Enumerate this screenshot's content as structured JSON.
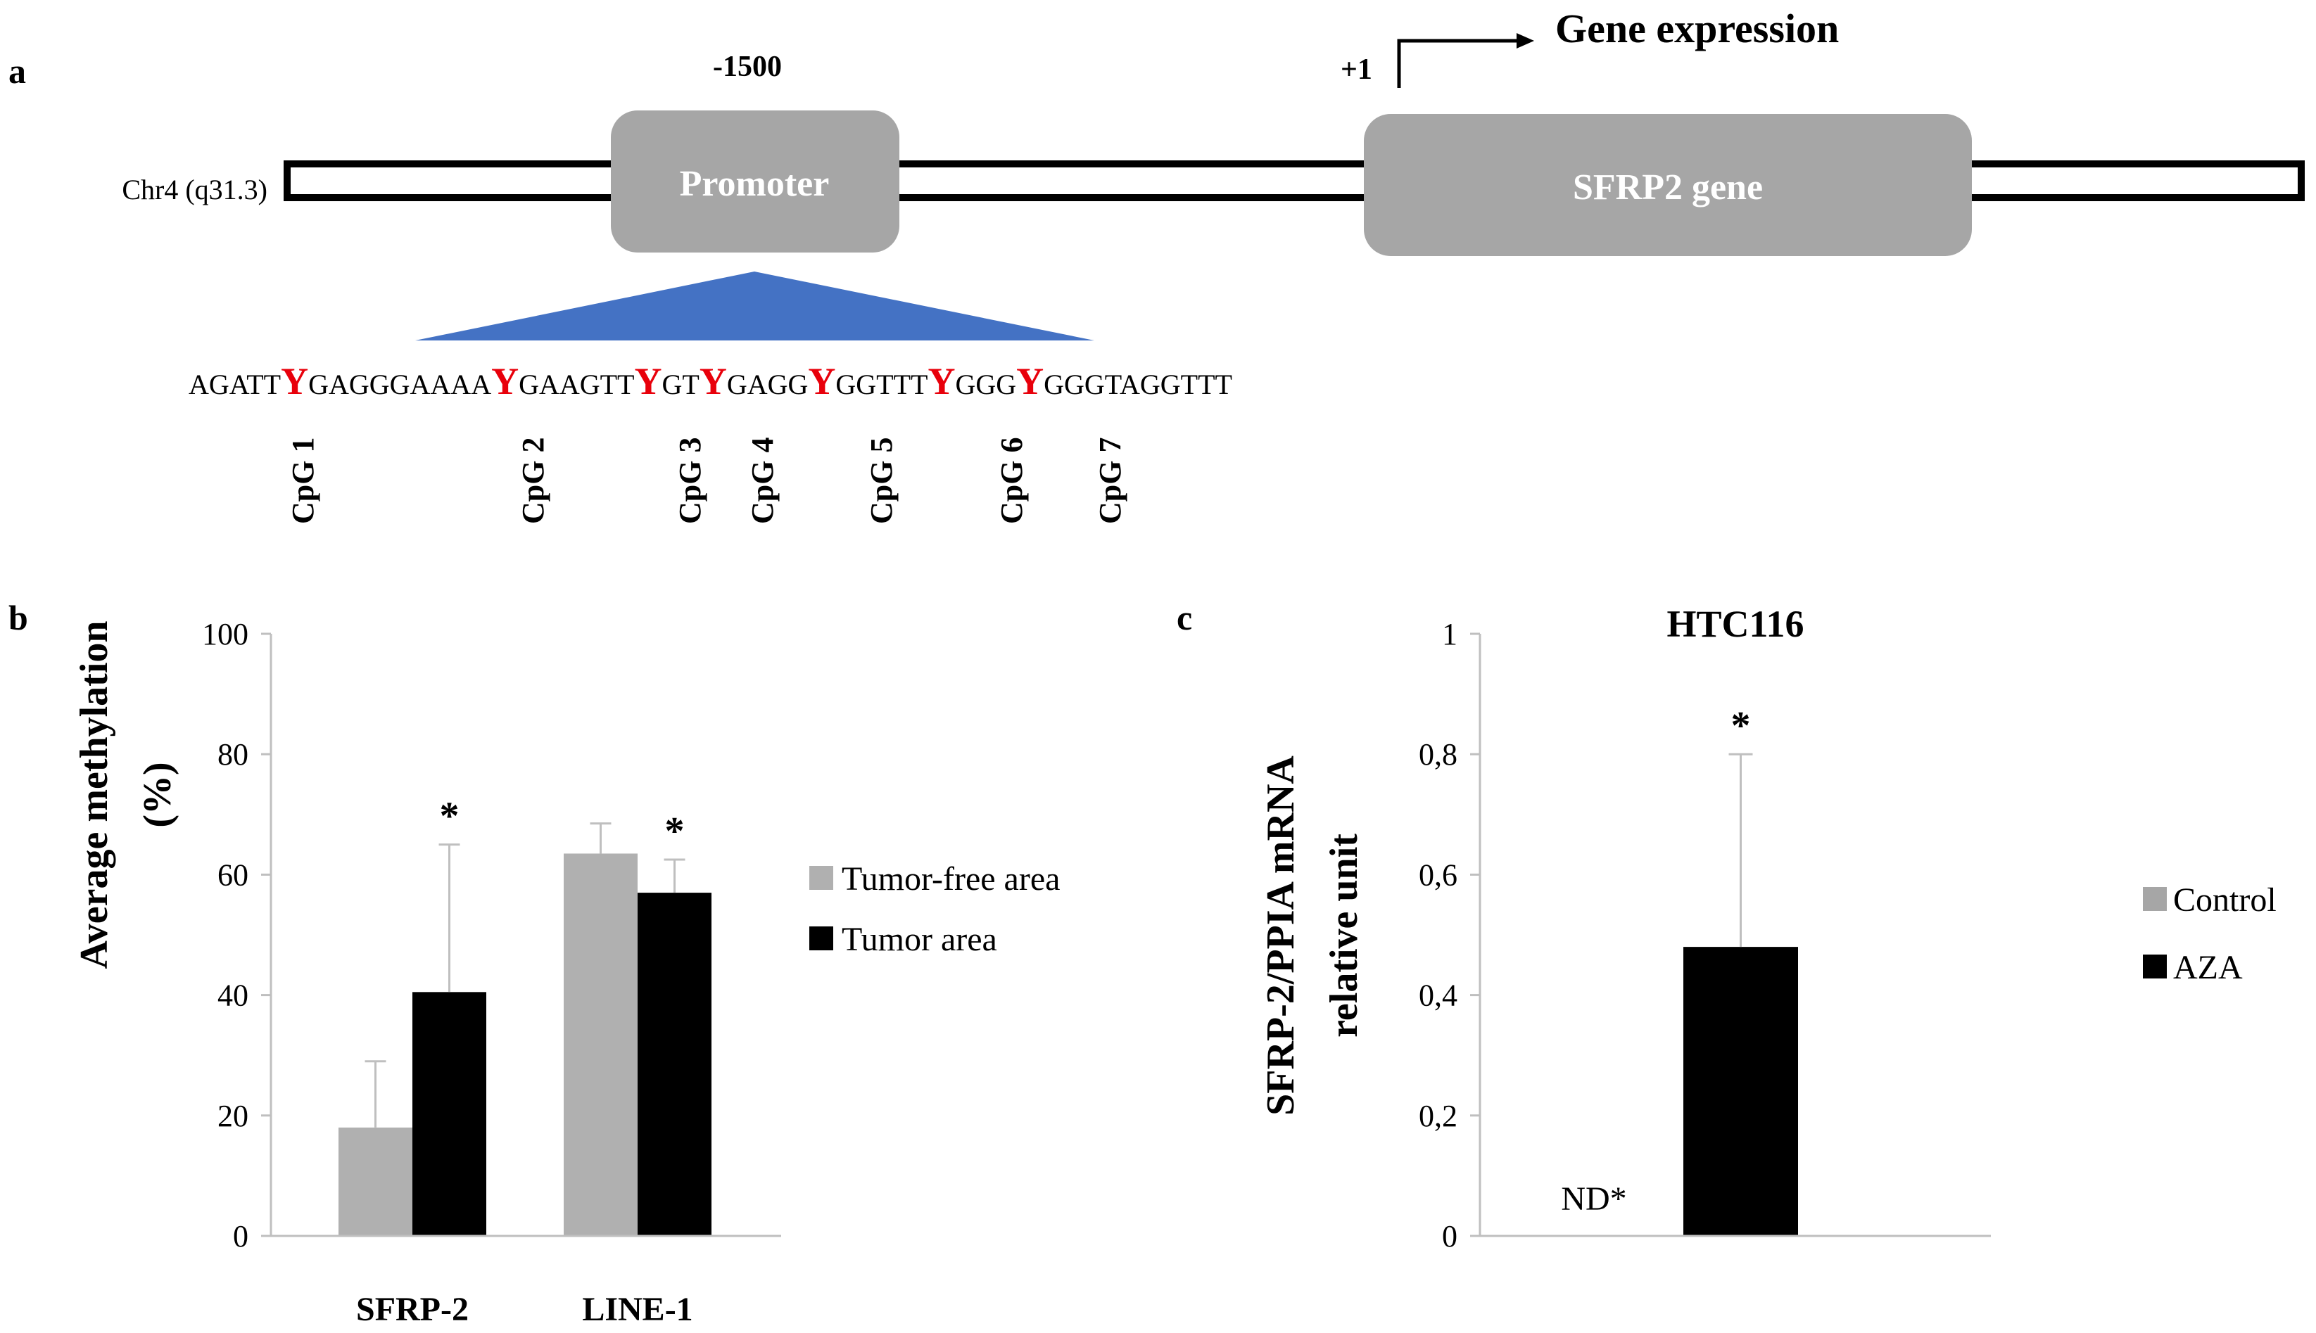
{
  "colors": {
    "box_gray": "#a6a6a6",
    "triangle_blue": "#4472c4",
    "cpg_red": "#e8000b",
    "tumor_free": "#b0b0b0",
    "tumor": "#000000",
    "control": "#a6a6a6",
    "aza": "#000000",
    "axis": "#bfbfbf",
    "text": "#000000"
  },
  "panel_a": {
    "label": "a",
    "chromosome": "Chr4 (q31.3)",
    "promoter_position": "-1500",
    "promoter_label": "Promoter",
    "tss_label": "+1",
    "gene_expression_label": "Gene expression",
    "gene_label": "SFRP2 gene",
    "sequence": [
      {
        "text": "AGATT",
        "cpg": false
      },
      {
        "text": "Y",
        "cpg": true
      },
      {
        "text": "GAGGGAAAA",
        "cpg": false
      },
      {
        "text": "Y",
        "cpg": true
      },
      {
        "text": "GAAGTT",
        "cpg": false
      },
      {
        "text": "Y",
        "cpg": true
      },
      {
        "text": "GT",
        "cpg": false
      },
      {
        "text": "Y",
        "cpg": true
      },
      {
        "text": "GAGG",
        "cpg": false
      },
      {
        "text": "Y",
        "cpg": true
      },
      {
        "text": "GGTTT",
        "cpg": false
      },
      {
        "text": "Y",
        "cpg": true
      },
      {
        "text": "GGG",
        "cpg": false
      },
      {
        "text": "Y",
        "cpg": true
      },
      {
        "text": "GGGTAGGTTT",
        "cpg": false
      }
    ],
    "cpg_labels": [
      "CpG 1",
      "CpG 2",
      "CpG 3",
      "CpG 4",
      "CpG 5",
      "CpG 6",
      "CpG 7"
    ]
  },
  "panel_b": {
    "label": "b",
    "chart_data": {
      "type": "bar",
      "title": "",
      "categories": [
        "SFRP-2",
        "LINE-1"
      ],
      "series": [
        {
          "name": "Tumor-free area",
          "values": [
            18,
            63.5
          ],
          "errors": [
            11,
            5
          ],
          "color_key": "tumor_free"
        },
        {
          "name": "Tumor area",
          "values": [
            40.5,
            57
          ],
          "errors": [
            24.5,
            5.5
          ],
          "color_key": "tumor"
        }
      ],
      "significance": [
        "*",
        "*"
      ],
      "ylabel_line1": "Average methylation",
      "ylabel_line2": "(%)",
      "xlabel": "",
      "ylim": [
        0,
        100
      ],
      "yticks": [
        0,
        20,
        40,
        60,
        80,
        100
      ],
      "ytick_labels": [
        "0",
        "20",
        "40",
        "60",
        "80",
        "100"
      ],
      "grid": false,
      "legend_position": "right"
    }
  },
  "panel_c": {
    "label": "c",
    "chart_data": {
      "type": "bar",
      "title": "HTC116",
      "categories": [
        ""
      ],
      "series": [
        {
          "name": "Control",
          "values": [
            0
          ],
          "color_key": "control",
          "annotation": "ND*"
        },
        {
          "name": "AZA",
          "values": [
            0.48
          ],
          "errors": [
            0.32
          ],
          "color_key": "aza",
          "significance": "*"
        }
      ],
      "ylabel_line1": "SFRP-2/PPIA mRNA",
      "ylabel_line2": "relative unit",
      "xlabel": "",
      "ylim": [
        0,
        1
      ],
      "yticks": [
        0,
        0.2,
        0.4,
        0.6,
        0.8,
        1
      ],
      "ytick_labels": [
        "0",
        "0,2",
        "0,4",
        "0,6",
        "0,8",
        "1"
      ],
      "grid": false,
      "legend_position": "right"
    }
  }
}
